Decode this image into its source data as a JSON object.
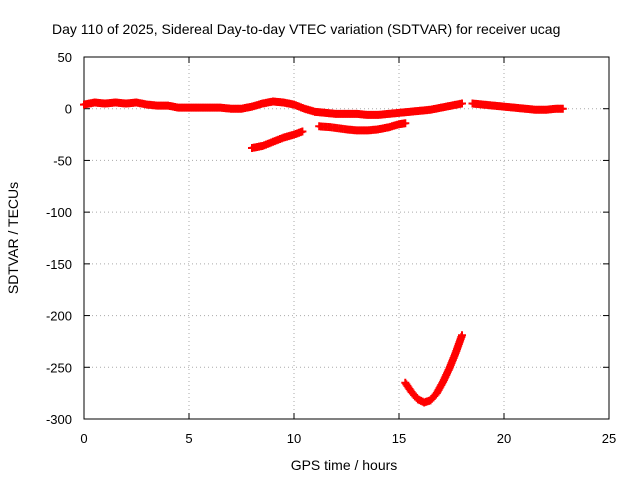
{
  "chart_data": {
    "type": "scatter",
    "title": "Day 110 of 2025, Sidereal Day-to-day VTEC variation (SDTVAR) for receiver ucag",
    "xlabel": "GPS time / hours",
    "ylabel": "SDTVAR / TECUs",
    "xlim": [
      0,
      25
    ],
    "ylim": [
      -300,
      50
    ],
    "xticks": [
      0,
      5,
      10,
      15,
      20,
      25
    ],
    "yticks": [
      50,
      0,
      -50,
      -100,
      -150,
      -200,
      -250,
      -300
    ],
    "grid": true,
    "legend": "none",
    "marker": "plus",
    "color": "#ff0000",
    "series": [
      {
        "values": [
          [
            0.0,
            4
          ],
          [
            0.5,
            6
          ],
          [
            1.0,
            5
          ],
          [
            1.5,
            6
          ],
          [
            2.0,
            5
          ],
          [
            2.5,
            6
          ],
          [
            3.0,
            4
          ],
          [
            3.5,
            3
          ],
          [
            4.0,
            3
          ],
          [
            4.5,
            1
          ],
          [
            5.0,
            1
          ],
          [
            5.5,
            1
          ],
          [
            6.0,
            1
          ],
          [
            6.5,
            1
          ],
          [
            7.0,
            0
          ],
          [
            7.5,
            0
          ],
          [
            8.0,
            2
          ],
          [
            8.5,
            5
          ],
          [
            9.0,
            7
          ],
          [
            9.5,
            6
          ],
          [
            10.0,
            4
          ],
          [
            10.5,
            0
          ],
          [
            11.0,
            -3
          ],
          [
            11.5,
            -4
          ],
          [
            12.0,
            -5
          ],
          [
            12.5,
            -5
          ],
          [
            13.0,
            -5
          ],
          [
            13.5,
            -6
          ],
          [
            14.0,
            -6
          ],
          [
            14.5,
            -5
          ],
          [
            15.0,
            -4
          ],
          [
            15.5,
            -3
          ],
          [
            16.0,
            -2
          ],
          [
            16.5,
            -1
          ],
          [
            17.0,
            1
          ],
          [
            17.5,
            3
          ],
          [
            18.0,
            5
          ]
        ]
      },
      {
        "values": [
          [
            18.5,
            5
          ],
          [
            19.0,
            4
          ],
          [
            19.5,
            3
          ],
          [
            20.0,
            2
          ],
          [
            20.5,
            1
          ],
          [
            21.0,
            0
          ],
          [
            21.5,
            -1
          ],
          [
            22.0,
            -1
          ],
          [
            22.5,
            0
          ],
          [
            22.8,
            0
          ]
        ]
      },
      {
        "values": [
          [
            8.0,
            -38
          ],
          [
            8.5,
            -36
          ],
          [
            9.0,
            -32
          ],
          [
            9.5,
            -28
          ],
          [
            10.0,
            -25
          ],
          [
            10.4,
            -22
          ]
        ]
      },
      {
        "values": [
          [
            11.2,
            -17
          ],
          [
            11.8,
            -18
          ],
          [
            12.5,
            -20
          ],
          [
            13.0,
            -21
          ],
          [
            13.5,
            -21
          ],
          [
            14.0,
            -20
          ],
          [
            14.5,
            -18
          ],
          [
            15.0,
            -15
          ],
          [
            15.3,
            -14
          ]
        ]
      },
      {
        "values": [
          [
            15.3,
            -265
          ],
          [
            15.6,
            -274
          ],
          [
            15.9,
            -281
          ],
          [
            16.2,
            -284
          ],
          [
            16.5,
            -282
          ],
          [
            16.8,
            -275
          ],
          [
            17.1,
            -264
          ],
          [
            17.4,
            -251
          ],
          [
            17.7,
            -236
          ],
          [
            18.0,
            -219
          ]
        ]
      }
    ]
  }
}
